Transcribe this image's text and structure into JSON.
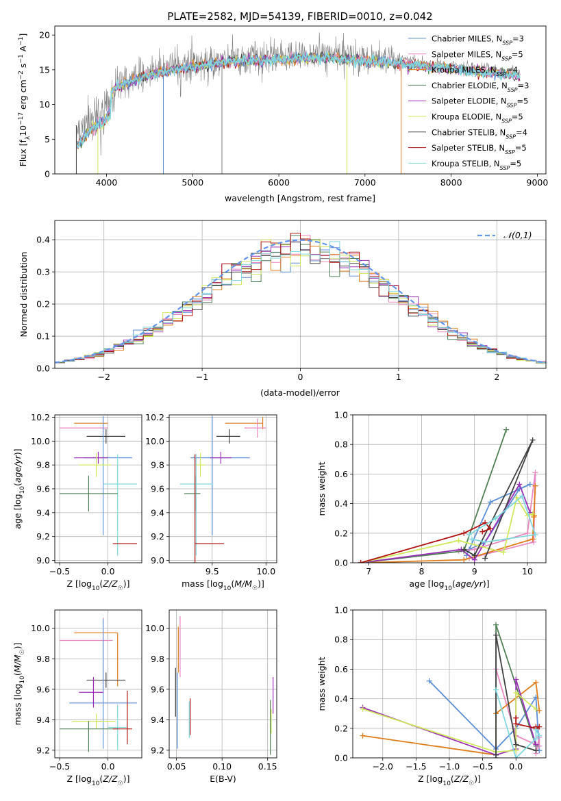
{
  "figure_title": "PLATE=2582, MJD=54139, FIBERID=0010, z=0.042",
  "colors": {
    "chabrier_miles": "#5b8ed6",
    "salpeter_miles": "#e887c0",
    "kroupa_miles": "#e07b1a",
    "chabrier_elodie": "#4f7f55",
    "salpeter_elodie": "#9b30b8",
    "kroupa_elodie": "#cfe85a",
    "chabrier_stelib": "#404040",
    "salpeter_stelib": "#b01010",
    "kroupa_stelib": "#80d8e0",
    "spectrum": "#7f7f7f",
    "normal": "#6495ed",
    "grid": "#b0b0b0"
  },
  "chart_data": [
    {
      "id": "spectrum",
      "type": "line",
      "title": "PLATE=2582, MJD=54139, FIBERID=0010, z=0.042",
      "xlabel": "wavelength [Angstrom, rest frame]",
      "ylabel": "Flux [f_λ10^-17 erg cm^-2 s^-1 A^-1]",
      "xlim": [
        3400,
        9100
      ],
      "ylim": [
        0,
        21.3
      ],
      "xticks": [
        4000,
        5000,
        6000,
        7000,
        8000,
        9000
      ],
      "yticks": [
        0,
        5,
        10,
        15,
        20
      ],
      "grid": false,
      "legend_position": "right",
      "legend": [
        {
          "label": "Chabrier MILES, N_SSP=3",
          "color_key": "chabrier_miles"
        },
        {
          "label": "Salpeter MILES, N_SSP=5",
          "color_key": "salpeter_miles"
        },
        {
          "label": "Kroupa MILES, N_SSP=4",
          "color_key": "kroupa_miles"
        },
        {
          "label": "Chabrier ELODIE, N_SSP=3",
          "color_key": "chabrier_elodie"
        },
        {
          "label": "Salpeter ELODIE, N_SSP=5",
          "color_key": "salpeter_elodie"
        },
        {
          "label": "Kroupa ELODIE, N_SSP=5",
          "color_key": "kroupa_elodie"
        },
        {
          "label": "Chabrier STELIB, N_SSP=4",
          "color_key": "chabrier_stelib"
        },
        {
          "label": "Salpeter STELIB, N_SSP=5",
          "color_key": "salpeter_stelib"
        },
        {
          "label": "Kroupa STELIB, N_SSP=5",
          "color_key": "kroupa_stelib"
        }
      ],
      "observed_envelope": {
        "x": [
          3650,
          3800,
          3950,
          4100,
          4300,
          4500,
          4700,
          4900,
          5100,
          5300,
          5500,
          5700,
          5900,
          6100,
          6300,
          6500,
          6700,
          6900,
          7100,
          7300,
          7500,
          7700,
          7900,
          8100,
          8300,
          8500,
          8700,
          8800
        ],
        "y": [
          8.5,
          10.8,
          12.0,
          14.0,
          15.0,
          15.8,
          16.4,
          16.8,
          17.2,
          17.6,
          17.8,
          18.0,
          18.0,
          18.1,
          18.3,
          18.3,
          18.2,
          18.0,
          17.8,
          17.6,
          17.4,
          17.0,
          16.8,
          16.5,
          16.3,
          16.1,
          15.8,
          15.6
        ]
      }
    },
    {
      "id": "residual_hist",
      "type": "histogram",
      "xlabel": "(data-model)/error",
      "ylabel": "Normed distribution",
      "xlim": [
        -2.5,
        2.5
      ],
      "ylim": [
        0,
        0.46
      ],
      "xticks": [
        -2,
        -1,
        0,
        1,
        2
      ],
      "yticks": [
        0.0,
        0.1,
        0.2,
        0.3,
        0.4
      ],
      "grid": true,
      "legend_position": "top-right",
      "legend": [
        {
          "label": "𝒩(0,1)",
          "color_key": "normal",
          "style": "dashed"
        }
      ],
      "bin_width": 0.1
    },
    {
      "id": "z_age",
      "type": "errorbar",
      "xlabel": "Z [log10(Z/Z☉)]",
      "ylabel": "age [log10(age/yr)]",
      "xlim": [
        -0.55,
        0.35
      ],
      "ylim": [
        8.98,
        10.22
      ],
      "xticks": [
        -0.5,
        0.0
      ],
      "yticks": [
        9.0,
        9.2,
        9.4,
        9.6,
        9.8,
        10.0,
        10.2
      ],
      "grid": true,
      "points": [
        {
          "s": "kroupa_miles",
          "x": 0.0,
          "xerr": [
            0.35,
            0.0
          ],
          "y": 10.15,
          "yerr": [
            0.0,
            0.0
          ]
        },
        {
          "s": "salpeter_miles",
          "x": -0.05,
          "xerr": [
            0.45,
            0.05
          ],
          "y": 10.11,
          "yerr": [
            0.04,
            0.08
          ]
        },
        {
          "s": "chabrier_stelib",
          "x": -0.02,
          "xerr": [
            0.2,
            0.2
          ],
          "y": 10.04,
          "yerr": [
            0.06,
            0.06
          ]
        },
        {
          "s": "chabrier_miles",
          "x": -0.05,
          "xerr": [
            0.2,
            0.3
          ],
          "y": 9.86,
          "yerr": [
            0.65,
            0.35
          ]
        },
        {
          "s": "salpeter_elodie",
          "x": -0.1,
          "xerr": [
            0.25,
            0.1
          ],
          "y": 9.86,
          "yerr": [
            0.05,
            0.05
          ]
        },
        {
          "s": "kroupa_elodie",
          "x": -0.12,
          "xerr": [
            0.18,
            0.15
          ],
          "y": 9.8,
          "yerr": [
            0.1,
            0.1
          ]
        },
        {
          "s": "kroupa_stelib",
          "x": 0.1,
          "xerr": [
            0.15,
            0.2
          ],
          "y": 9.64,
          "yerr": [
            0.6,
            0.25
          ]
        },
        {
          "s": "chabrier_elodie",
          "x": -0.2,
          "xerr": [
            0.3,
            0.3
          ],
          "y": 9.56,
          "yerr": [
            0.15,
            0.15
          ]
        },
        {
          "s": "salpeter_stelib",
          "x": 0.2,
          "xerr": [
            0.15,
            0.1
          ],
          "y": 9.14,
          "yerr": [
            0.0,
            0.0
          ]
        }
      ]
    },
    {
      "id": "mass_age",
      "type": "errorbar",
      "xlabel": "mass [log10(M/M☉)]",
      "ylabel": "",
      "xlim": [
        9.1,
        10.1
      ],
      "ylim": [
        8.98,
        10.22
      ],
      "xticks": [
        9.5,
        10.0
      ],
      "yticks": [
        9.0,
        9.2,
        9.4,
        9.6,
        9.8,
        10.0,
        10.2
      ],
      "grid": true,
      "points": [
        {
          "s": "kroupa_miles",
          "x": 9.97,
          "xerr": [
            0.35,
            0.0
          ],
          "y": 10.15,
          "yerr": [
            0.05,
            0.05
          ]
        },
        {
          "s": "salpeter_miles",
          "x": 9.92,
          "xerr": [
            0.12,
            0.08
          ],
          "y": 10.11,
          "yerr": [
            0.08,
            0.08
          ]
        },
        {
          "s": "chabrier_stelib",
          "x": 9.66,
          "xerr": [
            0.12,
            0.1
          ],
          "y": 10.04,
          "yerr": [
            0.06,
            0.06
          ]
        },
        {
          "s": "chabrier_miles",
          "x": 9.5,
          "xerr": [
            0.2,
            0.35
          ],
          "y": 9.86,
          "yerr": [
            0.65,
            0.35
          ]
        },
        {
          "s": "salpeter_elodie",
          "x": 9.58,
          "xerr": [
            0.1,
            0.1
          ],
          "y": 9.86,
          "yerr": [
            0.05,
            0.05
          ]
        },
        {
          "s": "kroupa_elodie",
          "x": 9.39,
          "xerr": [
            0.05,
            0.05
          ],
          "y": 9.8,
          "yerr": [
            0.1,
            0.1
          ]
        },
        {
          "s": "kroupa_stelib",
          "x": 9.35,
          "xerr": [
            0.15,
            0.15
          ],
          "y": 9.64,
          "yerr": [
            0.6,
            0.25
          ]
        },
        {
          "s": "chabrier_elodie",
          "x": 9.34,
          "xerr": [
            0.1,
            0.05
          ],
          "y": 9.56,
          "yerr": [
            0.15,
            0.15
          ]
        },
        {
          "s": "salpeter_stelib",
          "x": 9.34,
          "xerr": [
            0.0,
            0.27
          ],
          "y": 9.14,
          "yerr": [
            0.2,
            0.75
          ]
        }
      ]
    },
    {
      "id": "age_weight",
      "type": "line",
      "xlabel": "age [log10(age/yr)]",
      "ylabel": "mass weight",
      "xlim": [
        6.7,
        10.35
      ],
      "ylim": [
        0,
        1.0
      ],
      "xticks": [
        7,
        8,
        9,
        10
      ],
      "yticks": [
        0.0,
        0.2,
        0.4,
        0.6,
        0.8,
        1.0
      ],
      "grid": true,
      "series": [
        {
          "s": "chabrier_miles",
          "x": [
            8.85,
            9.3,
            10.05,
            9.85,
            9.2,
            8.9
          ],
          "y": [
            0.05,
            0.41,
            0.53,
            0.5,
            0.14,
            0.09
          ]
        },
        {
          "s": "salpeter_miles",
          "x": [
            8.7,
            9.0,
            10.0,
            10.15,
            10.12,
            8.9
          ],
          "y": [
            0.08,
            0.09,
            0.2,
            0.61,
            0.14,
            0.03
          ]
        },
        {
          "s": "kroupa_miles",
          "x": [
            6.85,
            8.8,
            10.1,
            10.15,
            10.12,
            10.13
          ],
          "y": [
            0.0,
            0.02,
            0.16,
            0.52,
            0.31,
            0.32
          ]
        },
        {
          "s": "chabrier_elodie",
          "x": [
            6.85,
            8.8,
            9.6
          ],
          "y": [
            0.0,
            0.08,
            0.9
          ]
        },
        {
          "s": "salpeter_elodie",
          "x": [
            6.85,
            8.75,
            9.0,
            9.85,
            10.05
          ],
          "y": [
            0.0,
            0.09,
            0.02,
            0.53,
            0.34
          ]
        },
        {
          "s": "kroupa_elodie",
          "x": [
            6.85,
            8.7,
            9.55,
            9.8,
            10.0,
            10.1
          ],
          "y": [
            0.0,
            0.15,
            0.07,
            0.44,
            0.32,
            0.33
          ]
        },
        {
          "s": "chabrier_stelib",
          "x": [
            8.8,
            9.0,
            10.1,
            9.2
          ],
          "y": [
            0.09,
            0.05,
            0.83,
            0.03
          ]
        },
        {
          "s": "salpeter_stelib",
          "x": [
            6.85,
            8.8,
            9.2,
            9.3,
            9.15
          ],
          "y": [
            0.0,
            0.2,
            0.27,
            0.23,
            0.21
          ]
        },
        {
          "s": "kroupa_stelib",
          "x": [
            8.9,
            9.4,
            9.9,
            10.15,
            9.2,
            8.95
          ],
          "y": [
            0.19,
            0.3,
            0.45,
            0.19,
            0.14,
            0.16
          ]
        }
      ]
    },
    {
      "id": "z_mass",
      "type": "errorbar",
      "xlabel": "Z [log10(Z/Z☉)]",
      "ylabel": "mass [log10(M/M☉)]",
      "xlim": [
        -0.55,
        0.35
      ],
      "ylim": [
        9.15,
        10.12
      ],
      "xticks": [
        -0.5,
        0.0
      ],
      "yticks": [
        9.2,
        9.4,
        9.6,
        9.8,
        10.0
      ],
      "grid": true,
      "points": [
        {
          "s": "kroupa_miles",
          "x": 0.1,
          "xerr": [
            0.45,
            0.0
          ],
          "y": 9.97,
          "yerr": [
            0.35,
            0.0
          ]
        },
        {
          "s": "salpeter_miles",
          "x": -0.05,
          "xerr": [
            0.45,
            0.1
          ],
          "y": 9.92,
          "yerr": [
            0.35,
            0.15
          ]
        },
        {
          "s": "chabrier_stelib",
          "x": -0.02,
          "xerr": [
            0.2,
            0.2
          ],
          "y": 9.66,
          "yerr": [
            0.05,
            0.05
          ]
        },
        {
          "s": "chabrier_miles",
          "x": -0.05,
          "xerr": [
            0.35,
            0.35
          ],
          "y": 9.51,
          "yerr": [
            0.3,
            0.55
          ]
        },
        {
          "s": "salpeter_elodie",
          "x": -0.15,
          "xerr": [
            0.15,
            0.1
          ],
          "y": 9.58,
          "yerr": [
            0.1,
            0.1
          ]
        },
        {
          "s": "kroupa_elodie",
          "x": -0.12,
          "xerr": [
            0.25,
            0.2
          ],
          "y": 9.39,
          "yerr": [
            0.05,
            0.05
          ]
        },
        {
          "s": "kroupa_stelib",
          "x": 0.1,
          "xerr": [
            0.1,
            0.1
          ],
          "y": 9.35,
          "yerr": [
            0.15,
            0.15
          ]
        },
        {
          "s": "chabrier_elodie",
          "x": -0.2,
          "xerr": [
            0.3,
            0.3
          ],
          "y": 9.34,
          "yerr": [
            0.15,
            0.05
          ]
        },
        {
          "s": "salpeter_stelib",
          "x": 0.2,
          "xerr": [
            0.15,
            0.05
          ],
          "y": 9.34,
          "yerr": [
            0.1,
            0.25
          ]
        }
      ]
    },
    {
      "id": "ebv_mass",
      "type": "errorbar",
      "xlabel": "E(B-V)",
      "ylabel": "",
      "xlim": [
        0.042,
        0.16
      ],
      "ylim": [
        9.15,
        10.12
      ],
      "xticks": [
        0.05,
        0.1,
        0.15
      ],
      "yticks": [
        9.2,
        9.4,
        9.6,
        9.8,
        10.0
      ],
      "grid": true,
      "points": [
        {
          "s": "kroupa_miles",
          "x": 0.052,
          "xerr": [
            0,
            0
          ],
          "y": 9.86,
          "yerr": [
            0.15,
            0.15
          ]
        },
        {
          "s": "salpeter_miles",
          "x": 0.054,
          "xerr": [
            0,
            0
          ],
          "y": 9.88,
          "yerr": [
            0.2,
            0.2
          ]
        },
        {
          "s": "chabrier_stelib",
          "x": 0.049,
          "xerr": [
            0,
            0
          ],
          "y": 9.58,
          "yerr": [
            0.16,
            0.16
          ]
        },
        {
          "s": "chabrier_miles",
          "x": 0.051,
          "xerr": [
            0,
            0
          ],
          "y": 9.46,
          "yerr": [
            0.25,
            0.25
          ]
        },
        {
          "s": "salpeter_elodie",
          "x": 0.156,
          "xerr": [
            0,
            0
          ],
          "y": 9.56,
          "yerr": [
            0.12,
            0.12
          ]
        },
        {
          "s": "kroupa_elodie",
          "x": 0.154,
          "xerr": [
            0,
            0
          ],
          "y": 9.39,
          "yerr": [
            0.08,
            0.08
          ]
        },
        {
          "s": "kroupa_stelib",
          "x": 0.064,
          "xerr": [
            0,
            0
          ],
          "y": 9.4,
          "yerr": [
            0.12,
            0.12
          ]
        },
        {
          "s": "chabrier_elodie",
          "x": 0.153,
          "xerr": [
            0,
            0
          ],
          "y": 9.35,
          "yerr": [
            0.18,
            0.18
          ]
        },
        {
          "s": "salpeter_stelib",
          "x": 0.065,
          "xerr": [
            0,
            0
          ],
          "y": 9.42,
          "yerr": [
            0.12,
            0.12
          ]
        }
      ]
    },
    {
      "id": "z_weight",
      "type": "line",
      "xlabel": "Z [log10(Z/Z☉)]",
      "ylabel": "mass weight",
      "xlim": [
        -2.45,
        0.45
      ],
      "ylim": [
        0,
        1.0
      ],
      "xticks": [
        -2.0,
        -1.5,
        -1.0,
        -0.5,
        0.0
      ],
      "yticks": [
        0.0,
        0.2,
        0.4,
        0.6,
        0.8,
        1.0
      ],
      "grid": true,
      "series": [
        {
          "s": "chabrier_miles",
          "x": [
            -1.3,
            -0.3,
            0.0,
            0.3,
            0.35
          ],
          "y": [
            0.52,
            0.06,
            0.2,
            0.41,
            0.05
          ]
        },
        {
          "s": "salpeter_miles",
          "x": [
            -0.3,
            0.0,
            0.35,
            0.35,
            0.3
          ],
          "y": [
            0.6,
            0.15,
            0.08,
            0.14,
            0.03
          ]
        },
        {
          "s": "kroupa_miles",
          "x": [
            -2.3,
            -0.3,
            -0.3,
            0.3,
            0.35
          ],
          "y": [
            0.15,
            0.02,
            0.3,
            0.51,
            0.32
          ]
        },
        {
          "s": "chabrier_elodie",
          "x": [
            -0.3,
            -0.3,
            0.3
          ],
          "y": [
            0.0,
            0.9,
            0.08
          ]
        },
        {
          "s": "salpeter_elodie",
          "x": [
            -2.3,
            -0.3,
            0.0,
            0.0,
            0.3
          ],
          "y": [
            0.34,
            0.02,
            0.06,
            0.53,
            0.09
          ]
        },
        {
          "s": "kroupa_elodie",
          "x": [
            -2.3,
            -0.3,
            0.0,
            0.0,
            0.3
          ],
          "y": [
            0.33,
            0.04,
            0.05,
            0.44,
            0.33
          ]
        },
        {
          "s": "chabrier_stelib",
          "x": [
            -0.3,
            -0.3,
            0.0,
            0.3
          ],
          "y": [
            0.02,
            0.83,
            0.09,
            0.05
          ]
        },
        {
          "s": "salpeter_stelib",
          "x": [
            0.0,
            0.0,
            0.3,
            0.35,
            0.3
          ],
          "y": [
            0.27,
            0.23,
            0.2,
            0.21,
            0.21
          ]
        },
        {
          "s": "kroupa_stelib",
          "x": [
            -0.3,
            0.0,
            0.3,
            0.3,
            0.35
          ],
          "y": [
            0.46,
            0.0,
            0.13,
            0.19,
            0.15
          ]
        }
      ]
    }
  ]
}
